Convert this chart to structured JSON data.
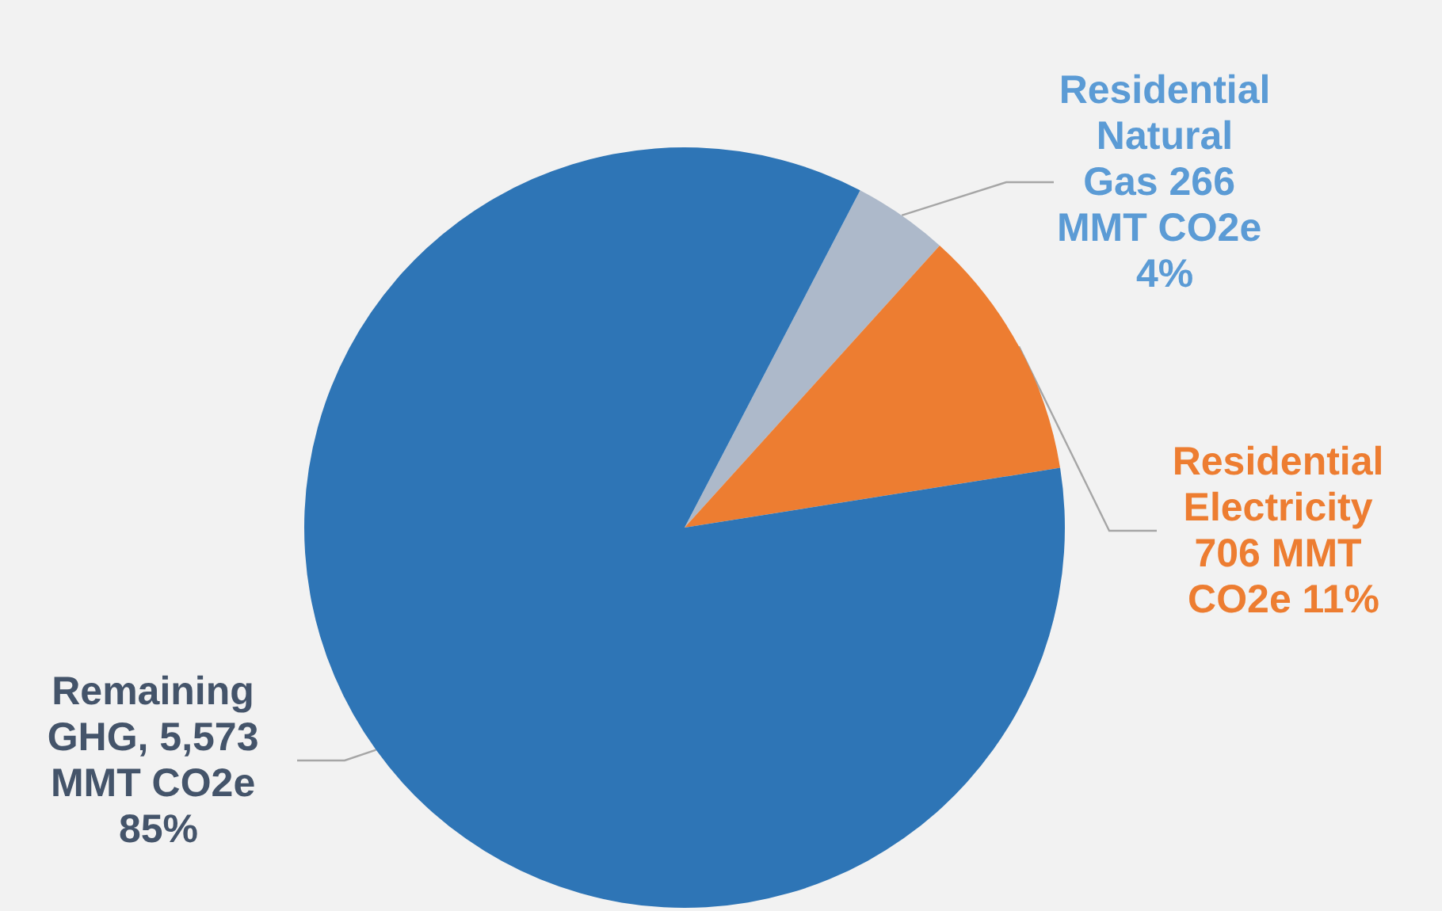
{
  "chart_data": {
    "type": "pie",
    "categories": [
      "Residential Natural Gas",
      "Residential Electricity",
      "Remaining GHG"
    ],
    "values": [
      266,
      706,
      5573
    ],
    "colors": [
      "#adb9ca",
      "#ed7d31",
      "#2e75b6"
    ],
    "value_labels": [
      "266 MMT CO2e 4%",
      "706 MMT CO2e 11%",
      "5,573 MMT CO2e 85%"
    ]
  }
}
